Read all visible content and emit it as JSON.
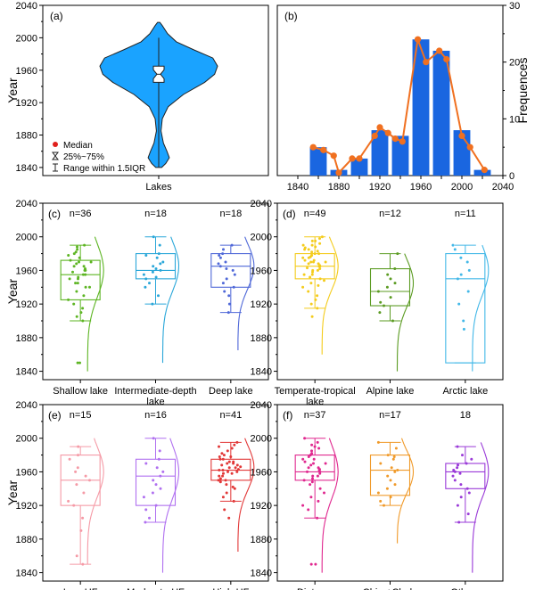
{
  "chart_data": [
    {
      "id": "a",
      "type": "violin",
      "panel_label": "(a)",
      "ylabel": "Year",
      "xlabel": "Lakes",
      "ylim": [
        1830,
        2040
      ],
      "yticks": [
        1840,
        1880,
        1920,
        1960,
        2000,
        2040
      ],
      "color": "#1aa3ff",
      "whisker": [
        1840,
        2000
      ],
      "q1": 1945,
      "q3": 1965,
      "median": 1955,
      "violin_profile": [
        [
          1840,
          0.05
        ],
        [
          1845,
          0.12
        ],
        [
          1852,
          0.18
        ],
        [
          1860,
          0.14
        ],
        [
          1870,
          0.08
        ],
        [
          1885,
          0.04
        ],
        [
          1900,
          0.06
        ],
        [
          1915,
          0.16
        ],
        [
          1930,
          0.42
        ],
        [
          1945,
          0.78
        ],
        [
          1955,
          0.95
        ],
        [
          1965,
          1.0
        ],
        [
          1975,
          0.92
        ],
        [
          1985,
          0.6
        ],
        [
          1995,
          0.3
        ],
        [
          2005,
          0.15
        ],
        [
          2015,
          0.06
        ],
        [
          2019,
          0.02
        ]
      ],
      "legend": {
        "median": "Median",
        "iqr": "25%~75%",
        "range": "Range within 1.5IQR"
      }
    },
    {
      "id": "b",
      "type": "bar+line",
      "panel_label": "(b)",
      "ylabel": "Frequences",
      "xlim": [
        1820,
        2040
      ],
      "xticks": [
        1840,
        1860,
        1880,
        1900,
        1920,
        1940,
        1960,
        1980,
        2000,
        2020,
        2040
      ],
      "xtick_labels": [
        "1840",
        "",
        "1880",
        "",
        "1920",
        "",
        "1960",
        "",
        "2000",
        "",
        "2040"
      ],
      "ylim": [
        0,
        30
      ],
      "yticks": [
        0,
        10,
        20,
        30
      ],
      "bar_color": "#1a66e0",
      "line_color": "#f07020",
      "bars": [
        {
          "x": 1860,
          "y": 5
        },
        {
          "x": 1880,
          "y": 1
        },
        {
          "x": 1900,
          "y": 3
        },
        {
          "x": 1920,
          "y": 8
        },
        {
          "x": 1940,
          "y": 7
        },
        {
          "x": 1960,
          "y": 24
        },
        {
          "x": 1980,
          "y": 22
        },
        {
          "x": 2000,
          "y": 8
        },
        {
          "x": 2020,
          "y": 1
        }
      ],
      "line_points": [
        [
          1855,
          5
        ],
        [
          1865,
          4.5
        ],
        [
          1875,
          3.5
        ],
        [
          1880,
          0.5
        ],
        [
          1893,
          3
        ],
        [
          1900,
          3
        ],
        [
          1915,
          7
        ],
        [
          1920,
          8.5
        ],
        [
          1928,
          7.5
        ],
        [
          1935,
          6.5
        ],
        [
          1942,
          6
        ],
        [
          1957,
          24
        ],
        [
          1965,
          20
        ],
        [
          1978,
          22
        ],
        [
          1985,
          20.5
        ],
        [
          2000,
          7
        ],
        [
          2008,
          5
        ],
        [
          2022,
          1
        ]
      ]
    },
    {
      "id": "c",
      "type": "box",
      "panel_label": "(c)",
      "ylabel": "Year",
      "ylim": [
        1830,
        2040
      ],
      "yticks": [
        1840,
        1880,
        1920,
        1960,
        2000,
        2040
      ],
      "groups": [
        {
          "label": [
            "Shallow lake"
          ],
          "n": "n=36",
          "color": "#5db523",
          "whisker": [
            1900,
            1990
          ],
          "q1": 1925,
          "q3": 1972,
          "median": 1955,
          "pts": [
            1850,
            1850,
            1900,
            1905,
            1910,
            1915,
            1920,
            1925,
            1930,
            1935,
            1940,
            1940,
            1945,
            1945,
            1950,
            1950,
            1952,
            1955,
            1955,
            1958,
            1960,
            1960,
            1962,
            1965,
            1965,
            1968,
            1970,
            1970,
            1972,
            1975,
            1978,
            1980,
            1982,
            1985,
            1988,
            1990
          ],
          "curve": [
            1840,
            2000,
            1960
          ]
        },
        {
          "label": [
            "Intermediate-depth",
            "lake"
          ],
          "n": "n=18",
          "color": "#2aa7d9",
          "whisker": [
            1920,
            2000
          ],
          "q1": 1950,
          "q3": 1980,
          "median": 1960,
          "pts": [
            1920,
            1930,
            1940,
            1945,
            1950,
            1952,
            1955,
            1958,
            1960,
            1962,
            1965,
            1968,
            1970,
            1975,
            1978,
            1980,
            1990,
            2000
          ],
          "curve": [
            1850,
            2000,
            1965
          ]
        },
        {
          "label": [
            "Deep lake"
          ],
          "n": "n=18",
          "color": "#4f68d8",
          "whisker": [
            1910,
            1990
          ],
          "q1": 1940,
          "q3": 1980,
          "median": 1965,
          "pts": [
            1910,
            1920,
            1930,
            1935,
            1940,
            1945,
            1950,
            1955,
            1960,
            1962,
            1965,
            1968,
            1970,
            1975,
            1978,
            1980,
            1985,
            1990
          ],
          "curve": [
            1865,
            2000,
            1965
          ]
        }
      ]
    },
    {
      "id": "d",
      "type": "box",
      "panel_label": "(d)",
      "ylim": [
        1830,
        2040
      ],
      "yticks": [
        1840,
        1880,
        1920,
        1960,
        2000,
        2040
      ],
      "groups": [
        {
          "label": [
            "Temperate-tropical",
            "lake"
          ],
          "n": "n=49",
          "color": "#f4cc1c",
          "whisker": [
            1915,
            2000
          ],
          "q1": 1950,
          "q3": 1980,
          "median": 1965,
          "pts": [
            1905,
            1915,
            1920,
            1925,
            1930,
            1935,
            1940,
            1942,
            1945,
            1948,
            1950,
            1952,
            1955,
            1955,
            1958,
            1960,
            1960,
            1962,
            1963,
            1965,
            1965,
            1966,
            1968,
            1968,
            1970,
            1970,
            1970,
            1972,
            1972,
            1975,
            1975,
            1976,
            1978,
            1978,
            1980,
            1980,
            1982,
            1983,
            1985,
            1985,
            1987,
            1988,
            1990,
            1990,
            1992,
            1995,
            1995,
            1998,
            2000
          ],
          "curve": [
            1860,
            2000,
            1965
          ]
        },
        {
          "label": [
            "Alpine lake"
          ],
          "n": "n=12",
          "color": "#5b9b22",
          "whisker": [
            1900,
            1980
          ],
          "q1": 1918,
          "q3": 1962,
          "median": 1935,
          "pts": [
            1900,
            1910,
            1918,
            1922,
            1928,
            1935,
            1940,
            1945,
            1950,
            1955,
            1962,
            1980
          ],
          "curve": [
            1840,
            1980,
            1945
          ]
        },
        {
          "label": [
            "Arctic lake"
          ],
          "n": "n=11",
          "color": "#43b8e8",
          "whisker": [
            1850,
            1990
          ],
          "q1": 1850,
          "q3": 1980,
          "median": 1950,
          "pts": [
            1890,
            1900,
            1920,
            1935,
            1950,
            1955,
            1960,
            1970,
            1975,
            1985,
            1990
          ],
          "curve": [
            1840,
            1990,
            1960
          ]
        }
      ]
    },
    {
      "id": "e",
      "type": "box",
      "panel_label": "(e)",
      "ylabel": "Year",
      "ylim": [
        1830,
        2040
      ],
      "yticks": [
        1840,
        1880,
        1920,
        1960,
        2000,
        2040
      ],
      "groups": [
        {
          "label": [
            "Low-HF"
          ],
          "n": "n=15",
          "color": "#f59aa6",
          "whisker": [
            1850,
            1990
          ],
          "q1": 1920,
          "q3": 1980,
          "median": 1950,
          "pts": [
            1850,
            1860,
            1890,
            1905,
            1920,
            1925,
            1935,
            1945,
            1950,
            1955,
            1960,
            1965,
            1975,
            1980,
            1990
          ],
          "curve": [
            1850,
            2000,
            1960
          ]
        },
        {
          "label": [
            "Moderate-HF"
          ],
          "n": "n=16",
          "color": "#b070f0",
          "whisker": [
            1900,
            2000
          ],
          "q1": 1920,
          "q3": 1975,
          "median": 1955,
          "pts": [
            1900,
            1905,
            1915,
            1920,
            1930,
            1935,
            1940,
            1945,
            1950,
            1955,
            1960,
            1965,
            1970,
            1975,
            1985,
            2000
          ],
          "curve": [
            1840,
            2000,
            1960
          ]
        },
        {
          "label": [
            "High-HF"
          ],
          "n": "n=41",
          "color": "#e23838",
          "whisker": [
            1925,
            1995
          ],
          "q1": 1950,
          "q3": 1975,
          "median": 1962,
          "pts": [
            1905,
            1915,
            1925,
            1930,
            1935,
            1940,
            1942,
            1945,
            1948,
            1950,
            1950,
            1952,
            1955,
            1955,
            1958,
            1958,
            1960,
            1960,
            1962,
            1962,
            1963,
            1965,
            1965,
            1966,
            1968,
            1968,
            1970,
            1970,
            1972,
            1972,
            1975,
            1975,
            1978,
            1978,
            1980,
            1982,
            1985,
            1988,
            1990,
            1992,
            1995
          ],
          "curve": [
            1865,
            2000,
            1965
          ]
        }
      ]
    },
    {
      "id": "f",
      "type": "box",
      "panel_label": "(f)",
      "ylim": [
        1830,
        2040
      ],
      "yticks": [
        1840,
        1880,
        1920,
        1960,
        2000,
        2040
      ],
      "groups": [
        {
          "label": [
            "Diatoms"
          ],
          "n": "n=37",
          "color": "#e0288f",
          "whisker": [
            1905,
            2000
          ],
          "q1": 1950,
          "q3": 1980,
          "median": 1960,
          "pts": [
            1850,
            1850,
            1905,
            1915,
            1920,
            1925,
            1930,
            1935,
            1940,
            1945,
            1948,
            1950,
            1952,
            1955,
            1955,
            1958,
            1960,
            1960,
            1962,
            1963,
            1965,
            1965,
            1968,
            1970,
            1970,
            1972,
            1975,
            1975,
            1978,
            1980,
            1982,
            1985,
            1988,
            1990,
            1992,
            1995,
            2000
          ],
          "curve": [
            1840,
            2000,
            1960
          ]
        },
        {
          "label": [
            "Chiro+Clado"
          ],
          "n": "n=17",
          "color": "#f09a2a",
          "whisker": [
            1920,
            1995
          ],
          "q1": 1932,
          "q3": 1980,
          "median": 1962,
          "pts": [
            1920,
            1925,
            1930,
            1935,
            1940,
            1945,
            1950,
            1955,
            1960,
            1962,
            1965,
            1970,
            1975,
            1978,
            1980,
            1988,
            1995
          ],
          "curve": [
            1875,
            2000,
            1960
          ]
        },
        {
          "label": [
            "Others"
          ],
          "n": "18",
          "color": "#9a3ad8",
          "whisker": [
            1900,
            1990
          ],
          "q1": 1940,
          "q3": 1970,
          "median": 1960,
          "pts": [
            1900,
            1910,
            1920,
            1930,
            1935,
            1940,
            1945,
            1950,
            1955,
            1958,
            1960,
            1962,
            1965,
            1968,
            1970,
            1975,
            1980,
            1990
          ],
          "curve": [
            1840,
            1995,
            1960
          ]
        }
      ]
    }
  ]
}
